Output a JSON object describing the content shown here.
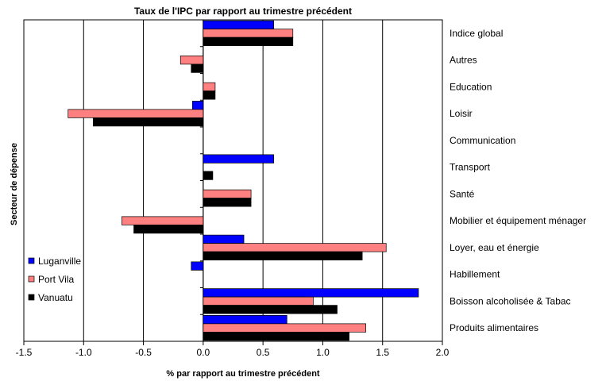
{
  "chart_data": {
    "type": "bar",
    "orientation": "horizontal",
    "title": "Taux de l'IPC par rapport au trimestre précédent",
    "xlabel": "% par rapport au trimestre précédent",
    "ylabel": "Secteur de dépense",
    "xlim": [
      -1.5,
      2.0
    ],
    "xticks": [
      "-1.5",
      "-1.0",
      "-0.5",
      "0.0",
      "0.5",
      "1.0",
      "1.5",
      "2.0"
    ],
    "grid": "vertical",
    "legend_position": "bottom-left",
    "categories": [
      "Indice global",
      "Autres",
      "Education",
      "Loisir",
      "Communication",
      "Transport",
      "Santé",
      "Mobilier et équipement ménager",
      "Loyer, eau et énergie",
      "Habillement",
      "Boisson alcoholisée & Tabac",
      "Produits alimentaires"
    ],
    "series": [
      {
        "name": "Luganville",
        "color": "#0000ff",
        "values": [
          0.59,
          0.0,
          0.0,
          -0.09,
          0.0,
          0.59,
          0.0,
          0.0,
          0.34,
          -0.1,
          1.8,
          0.7
        ]
      },
      {
        "name": "Port Vila",
        "color": "#ff8080",
        "values": [
          0.75,
          -0.19,
          0.1,
          -1.13,
          0.0,
          0.0,
          0.4,
          -0.68,
          1.53,
          0.0,
          0.92,
          1.36
        ]
      },
      {
        "name": "Vanuatu",
        "color": "#000000",
        "values": [
          0.75,
          -0.1,
          0.1,
          -0.92,
          0.0,
          0.08,
          0.4,
          -0.58,
          1.33,
          0.0,
          1.12,
          1.22
        ]
      }
    ]
  }
}
